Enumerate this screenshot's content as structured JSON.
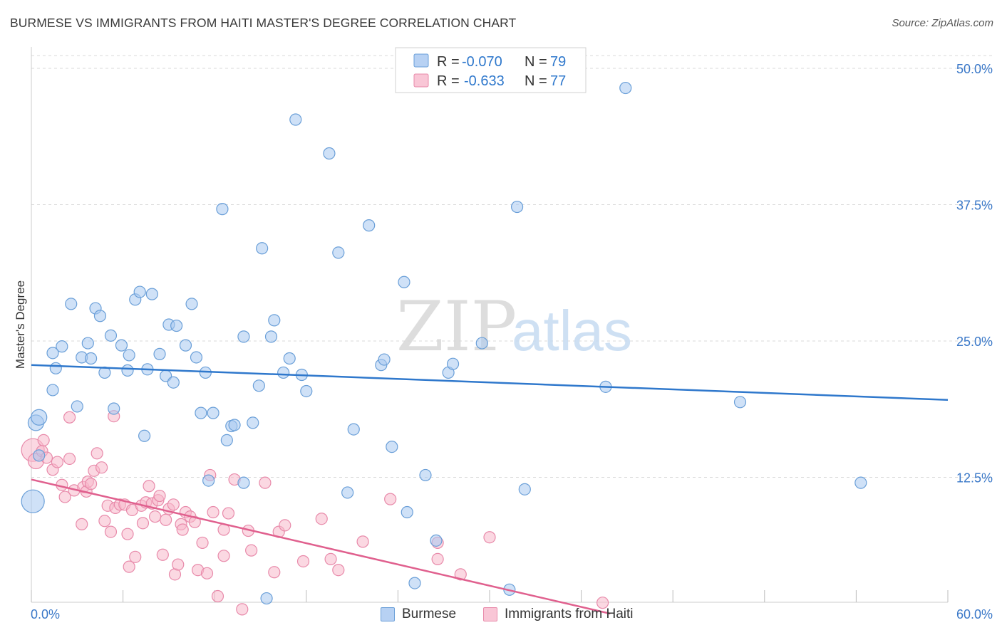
{
  "title": "BURMESE VS IMMIGRANTS FROM HAITI MASTER'S DEGREE CORRELATION CHART",
  "source": "Source: ZipAtlas.com",
  "watermark": {
    "zip": "ZIP",
    "atlas": "atlas"
  },
  "colors": {
    "blue_fill": "#a8c8f0",
    "blue_stroke": "#6a9fd8",
    "blue_line": "#2f78cc",
    "pink_fill": "#f7b8cb",
    "pink_stroke": "#e88aaa",
    "pink_line": "#e0608e",
    "axis_text": "#3a78c8",
    "grid": "#d9d9d9"
  },
  "legend": {
    "row1": {
      "r_label": "R =",
      "r_value": "-0.070",
      "n_label": "N =",
      "n_value": "79"
    },
    "row2": {
      "r_label": "R =",
      "r_value": "-0.633",
      "n_label": "N =",
      "n_value": "77"
    }
  },
  "bottom_legend": {
    "series1": "Burmese",
    "series2": "Immigrants from Haiti"
  },
  "chart_data": {
    "type": "scatter",
    "ylabel": "Master's Degree",
    "xlim": [
      0,
      60
    ],
    "ylim": [
      0,
      50
    ],
    "x_tick_labels": [
      "0.0%",
      "60.0%"
    ],
    "y_tick_labels": [
      "12.5%",
      "25.0%",
      "37.5%",
      "50.0%"
    ],
    "y_ticks": [
      12.5,
      25.0,
      37.5,
      50.0
    ],
    "grid": true,
    "series": [
      {
        "name": "Burmese",
        "trend": {
          "x0": 0,
          "y0": 22.8,
          "x1": 60,
          "y1": 19.6
        },
        "points": [
          [
            0.1,
            10.3,
            3
          ],
          [
            0.3,
            17.5,
            2
          ],
          [
            0.5,
            18.0,
            2
          ],
          [
            0.5,
            14.5,
            1
          ],
          [
            1.4,
            20.5,
            1
          ],
          [
            1.4,
            23.9,
            1
          ],
          [
            1.6,
            22.5,
            1
          ],
          [
            2.0,
            24.5,
            1
          ],
          [
            2.6,
            28.4,
            1
          ],
          [
            3.0,
            19.0,
            1
          ],
          [
            3.3,
            23.5,
            1
          ],
          [
            3.7,
            24.8,
            1
          ],
          [
            3.9,
            23.4,
            1
          ],
          [
            4.2,
            28.0,
            1
          ],
          [
            4.5,
            27.3,
            1
          ],
          [
            4.8,
            22.1,
            1
          ],
          [
            5.2,
            25.5,
            1
          ],
          [
            5.4,
            18.8,
            1
          ],
          [
            5.9,
            24.6,
            1
          ],
          [
            6.3,
            22.3,
            1
          ],
          [
            6.4,
            23.7,
            1
          ],
          [
            6.8,
            28.8,
            1
          ],
          [
            7.1,
            29.5,
            1
          ],
          [
            7.4,
            16.3,
            1
          ],
          [
            7.6,
            22.4,
            1
          ],
          [
            7.9,
            29.3,
            1
          ],
          [
            8.4,
            23.8,
            1
          ],
          [
            8.8,
            21.8,
            1
          ],
          [
            9.0,
            26.5,
            1
          ],
          [
            9.3,
            21.2,
            1
          ],
          [
            9.5,
            26.4,
            1
          ],
          [
            10.1,
            24.6,
            1
          ],
          [
            10.5,
            28.4,
            1
          ],
          [
            10.8,
            23.5,
            1
          ],
          [
            11.1,
            18.4,
            1
          ],
          [
            11.4,
            22.1,
            1
          ],
          [
            11.6,
            12.2,
            1
          ],
          [
            11.9,
            18.4,
            1
          ],
          [
            12.5,
            37.1,
            1
          ],
          [
            12.8,
            15.9,
            1
          ],
          [
            13.1,
            17.2,
            1
          ],
          [
            13.3,
            17.3,
            1
          ],
          [
            13.9,
            12.0,
            1
          ],
          [
            13.9,
            25.4,
            1
          ],
          [
            14.5,
            17.5,
            1
          ],
          [
            14.9,
            20.9,
            1
          ],
          [
            15.1,
            33.5,
            1
          ],
          [
            15.4,
            1.4,
            1
          ],
          [
            15.7,
            25.4,
            1
          ],
          [
            15.9,
            26.9,
            1
          ],
          [
            16.5,
            22.1,
            1
          ],
          [
            16.9,
            23.4,
            1
          ],
          [
            17.3,
            45.3,
            1
          ],
          [
            17.7,
            21.9,
            1
          ],
          [
            18.0,
            20.4,
            1
          ],
          [
            19.5,
            42.2,
            1
          ],
          [
            20.1,
            33.1,
            1
          ],
          [
            20.7,
            11.1,
            1
          ],
          [
            21.1,
            16.9,
            1
          ],
          [
            22.1,
            35.6,
            1
          ],
          [
            22.9,
            22.8,
            1
          ],
          [
            23.1,
            23.3,
            1
          ],
          [
            23.6,
            15.3,
            1
          ],
          [
            24.4,
            30.4,
            1
          ],
          [
            24.6,
            9.3,
            1
          ],
          [
            25.1,
            2.8,
            1
          ],
          [
            25.8,
            12.7,
            1
          ],
          [
            26.5,
            6.7,
            1
          ],
          [
            27.3,
            22.1,
            1
          ],
          [
            27.6,
            22.9,
            1
          ],
          [
            29.5,
            24.8,
            1
          ],
          [
            31.3,
            2.2,
            1
          ],
          [
            31.8,
            37.3,
            1
          ],
          [
            32.3,
            11.4,
            1
          ],
          [
            37.6,
            20.8,
            1
          ],
          [
            38.9,
            48.2,
            1
          ],
          [
            46.4,
            19.4,
            1
          ],
          [
            54.3,
            12.0,
            1
          ]
        ]
      },
      {
        "name": "Immigrants from Haiti",
        "trend": {
          "x0": 0,
          "y0": 12.3,
          "x1": 37.9,
          "y1": 0
        },
        "points": [
          [
            0.1,
            15.0,
            3
          ],
          [
            0.3,
            14.0,
            2
          ],
          [
            0.7,
            14.9,
            1
          ],
          [
            0.8,
            15.9,
            1
          ],
          [
            1.0,
            14.3,
            1
          ],
          [
            1.4,
            13.2,
            1
          ],
          [
            1.7,
            13.9,
            1
          ],
          [
            2.0,
            11.8,
            1
          ],
          [
            2.2,
            10.7,
            1
          ],
          [
            2.5,
            14.2,
            1
          ],
          [
            2.5,
            18.0,
            1
          ],
          [
            2.8,
            11.3,
            1
          ],
          [
            3.3,
            8.2,
            1
          ],
          [
            3.4,
            11.6,
            1
          ],
          [
            3.6,
            11.2,
            1
          ],
          [
            3.7,
            12.1,
            1
          ],
          [
            3.9,
            11.9,
            1
          ],
          [
            4.1,
            13.1,
            1
          ],
          [
            4.3,
            14.7,
            1
          ],
          [
            4.6,
            13.4,
            1
          ],
          [
            4.8,
            8.5,
            1
          ],
          [
            5.0,
            9.9,
            1
          ],
          [
            5.2,
            7.5,
            1
          ],
          [
            5.4,
            18.1,
            1
          ],
          [
            5.5,
            9.7,
            1
          ],
          [
            5.8,
            10.0,
            1
          ],
          [
            6.1,
            10.0,
            1
          ],
          [
            6.3,
            7.3,
            1
          ],
          [
            6.4,
            4.3,
            1
          ],
          [
            6.6,
            9.5,
            1
          ],
          [
            6.8,
            5.2,
            1
          ],
          [
            7.2,
            9.9,
            1
          ],
          [
            7.3,
            8.3,
            1
          ],
          [
            7.5,
            10.2,
            1
          ],
          [
            7.7,
            11.7,
            1
          ],
          [
            7.9,
            10.1,
            1
          ],
          [
            8.1,
            8.9,
            1
          ],
          [
            8.3,
            10.4,
            1
          ],
          [
            8.4,
            10.8,
            1
          ],
          [
            8.6,
            5.4,
            1
          ],
          [
            8.8,
            8.6,
            1
          ],
          [
            9.0,
            9.6,
            1
          ],
          [
            9.3,
            10.0,
            1
          ],
          [
            9.4,
            3.6,
            1
          ],
          [
            9.6,
            4.5,
            1
          ],
          [
            9.8,
            8.2,
            1
          ],
          [
            9.9,
            7.7,
            1
          ],
          [
            10.1,
            9.3,
            1
          ],
          [
            10.4,
            8.9,
            1
          ],
          [
            10.7,
            8.4,
            1
          ],
          [
            10.9,
            4.0,
            1
          ],
          [
            11.2,
            6.5,
            1
          ],
          [
            11.5,
            3.7,
            1
          ],
          [
            11.7,
            12.7,
            1
          ],
          [
            11.9,
            9.3,
            1
          ],
          [
            12.2,
            1.6,
            1
          ],
          [
            12.6,
            5.3,
            1
          ],
          [
            12.6,
            7.7,
            1
          ],
          [
            12.9,
            9.2,
            1
          ],
          [
            13.3,
            12.3,
            1
          ],
          [
            13.8,
            0.4,
            1
          ],
          [
            14.2,
            7.6,
            1
          ],
          [
            14.4,
            5.8,
            1
          ],
          [
            15.3,
            12.0,
            1
          ],
          [
            15.9,
            3.8,
            1
          ],
          [
            16.2,
            7.5,
            1
          ],
          [
            16.6,
            8.1,
            1
          ],
          [
            17.8,
            4.8,
            1
          ],
          [
            19.0,
            8.7,
            1
          ],
          [
            19.6,
            5.0,
            1
          ],
          [
            20.1,
            4.0,
            1
          ],
          [
            21.7,
            6.6,
            1
          ],
          [
            23.5,
            10.5,
            1
          ],
          [
            26.6,
            6.5,
            1
          ],
          [
            26.6,
            5.0,
            1
          ],
          [
            28.1,
            3.6,
            1
          ],
          [
            30.0,
            7.0,
            1
          ],
          [
            37.4,
            1.0,
            1
          ]
        ]
      }
    ]
  }
}
